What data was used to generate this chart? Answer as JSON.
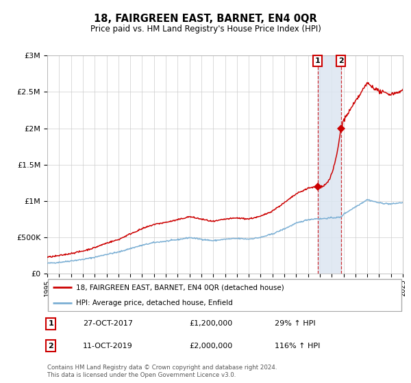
{
  "title": "18, FAIRGREEN EAST, BARNET, EN4 0QR",
  "subtitle": "Price paid vs. HM Land Registry's House Price Index (HPI)",
  "footnote": "Contains HM Land Registry data © Crown copyright and database right 2024.\nThis data is licensed under the Open Government Licence v3.0.",
  "legend_label_red": "18, FAIRGREEN EAST, BARNET, EN4 0QR (detached house)",
  "legend_label_blue": "HPI: Average price, detached house, Enfield",
  "annotation1_label": "1",
  "annotation1_date": "27-OCT-2017",
  "annotation1_price": "£1,200,000",
  "annotation1_hpi": "29% ↑ HPI",
  "annotation2_label": "2",
  "annotation2_date": "11-OCT-2019",
  "annotation2_price": "£2,000,000",
  "annotation2_hpi": "116% ↑ HPI",
  "sale1_year": 2017.82,
  "sale1_price": 1200000,
  "sale2_year": 2019.78,
  "sale2_price": 2000000,
  "hpi_color": "#7bafd4",
  "price_color": "#cc0000",
  "bg_color": "#ffffff",
  "grid_color": "#cccccc",
  "highlight_color": "#dce6f1",
  "ylim": [
    0,
    3000000
  ],
  "xlim_start": 1995,
  "xlim_end": 2025
}
